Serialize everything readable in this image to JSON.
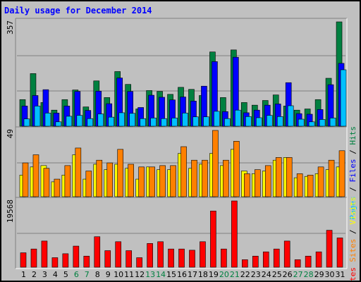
{
  "chart_data": {
    "title": "Daily usage for December 2014",
    "type": "bar",
    "categories": [
      "1",
      "2",
      "3",
      "4",
      "5",
      "6",
      "7",
      "8",
      "9",
      "10",
      "11",
      "12",
      "13",
      "14",
      "15",
      "16",
      "17",
      "18",
      "19",
      "20",
      "21",
      "22",
      "23",
      "24",
      "25",
      "26",
      "27",
      "28",
      "29",
      "30",
      "31"
    ],
    "weekend_days": [
      "6",
      "7",
      "13",
      "14",
      "20",
      "21",
      "27",
      "28"
    ],
    "colors": {
      "title": "#0000ff",
      "hits": "#008040",
      "files": "#0000ff",
      "pages": "#00c0ff",
      "visits": "#ffff00",
      "sites": "#ff8000",
      "kbytes": "#ff0000",
      "day_weekday": "#000000",
      "day_weekend": "#008040",
      "panel_bg": "#c0c0c0",
      "grid": "#808080"
    },
    "panels": [
      {
        "id": "hits-files-pages",
        "max_label": "357",
        "ymax": 357,
        "right_labels": [
          {
            "text": "Pages",
            "color": "#00c0ff"
          },
          {
            "text": " / ",
            "color": "#000000"
          },
          {
            "text": "Files",
            "color": "#0000ff"
          },
          {
            "text": " / ",
            "color": "#000000"
          },
          {
            "text": "Hits",
            "color": "#008040"
          }
        ],
        "series": [
          {
            "name": "Hits",
            "color": "#008040",
            "values": [
              91,
              180,
              81,
              55,
              91,
              124,
              66,
              155,
              98,
              187,
              143,
              59,
              122,
              119,
              109,
              133,
              126,
              105,
              254,
              98,
              261,
              81,
              72,
              88,
              107,
              69,
              55,
              59,
              91,
              164,
              357
            ]
          },
          {
            "name": "Files",
            "color": "#0000ff",
            "values": [
              69,
              105,
              125,
              45,
              69,
              119,
              54,
              120,
              77,
              165,
              119,
              64,
              106,
              99,
              90,
              100,
              86,
              137,
              221,
              50,
              236,
              46,
              55,
              72,
              76,
              149,
              43,
              41,
              57,
              142,
              215
            ]
          },
          {
            "name": "Pages",
            "color": "#00c0ff",
            "values": [
              25,
              69,
              45,
              15,
              34,
              37,
              26,
              42,
              31,
              46,
              44,
              26,
              28,
              26,
              28,
              45,
              32,
              32,
              51,
              26,
              55,
              33,
              29,
              37,
              33,
              70,
              24,
              15,
              23,
              28,
              193
            ]
          }
        ]
      },
      {
        "id": "visits-sites",
        "max_label": "49",
        "ymax": 49,
        "right_labels": [
          {
            "text": "Sites",
            "color": "#ff8000"
          },
          {
            "text": " / ",
            "color": "#000000"
          },
          {
            "text": "Visits",
            "color": "#ffff00"
          }
        ],
        "series": [
          {
            "name": "Visits",
            "color": "#ffff00",
            "values": [
              16,
              22,
              23,
              11,
              16,
              31,
              13,
              24,
              20,
              24,
              21,
              13,
              22,
              20,
              20,
              32,
              21,
              24,
              32,
              23,
              35,
              19,
              17,
              19,
              27,
              29,
              14,
              15,
              17,
              20,
              22
            ]
          },
          {
            "name": "Sites",
            "color": "#ff8000",
            "values": [
              25,
              31,
              21,
              13,
              23,
              36,
              19,
              27,
              25,
              35,
              24,
              22,
              22,
              23,
              23,
              37,
              27,
              27,
              49,
              27,
              41,
              17,
              20,
              23,
              29,
              29,
              17,
              16,
              22,
              27,
              34
            ]
          }
        ]
      },
      {
        "id": "kbytes",
        "max_label": "19568",
        "ymax": 19568,
        "right_labels": [
          {
            "text": "KBytes",
            "color": "#ff0000"
          }
        ],
        "series": [
          {
            "name": "KBytes",
            "color": "#ff0000",
            "values": [
              4260,
              5375,
              7727,
              2813,
              3980,
              6233,
              3277,
              9004,
              4889,
              7532,
              4889,
              2813,
              7014,
              7532,
              5375,
              5375,
              5020,
              7532,
              16600,
              5375,
              19568,
              2218,
              3277,
              4534,
              5375,
              7727,
              2218,
              3277,
              4534,
              10912,
              8647
            ]
          }
        ]
      }
    ]
  }
}
